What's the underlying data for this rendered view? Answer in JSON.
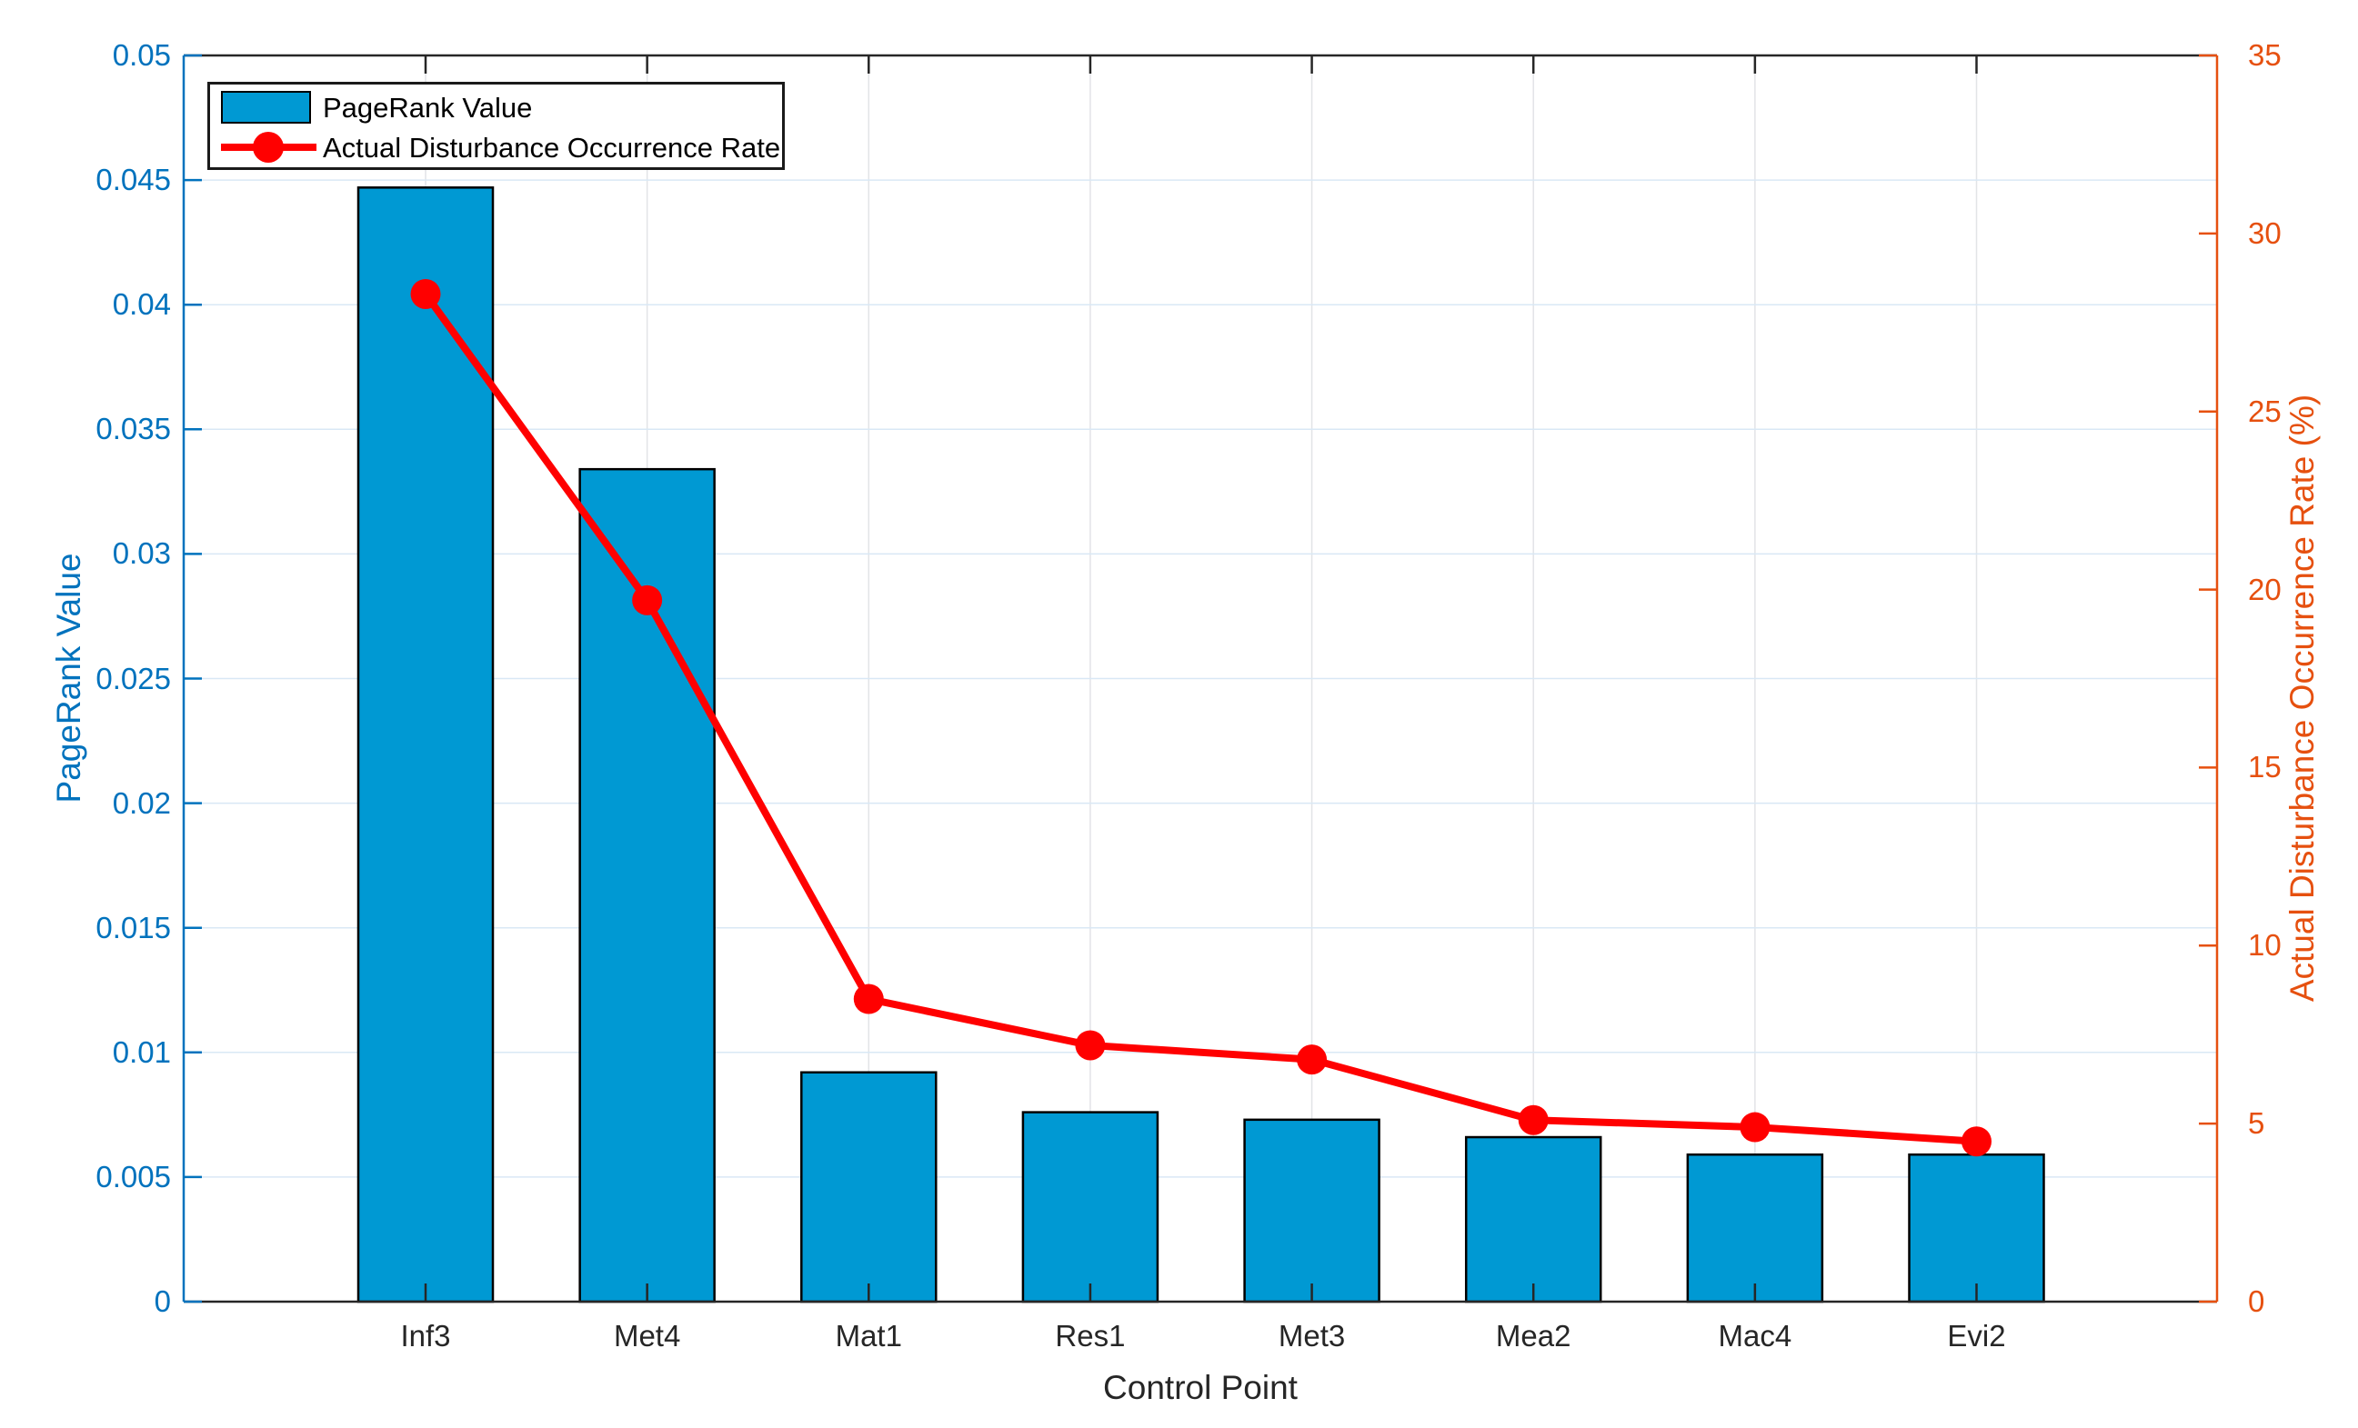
{
  "chart_data": {
    "type": "bar",
    "subtype": "dual-axis bar + line",
    "categories": [
      "Inf3",
      "Met4",
      "Mat1",
      "Res1",
      "Met3",
      "Mea2",
      "Mac4",
      "Evi2"
    ],
    "series": [
      {
        "name": "PageRank Value",
        "type": "bar",
        "axis": "left",
        "color": "#0099D3",
        "edge_color": "#000000",
        "values": [
          0.0447,
          0.0334,
          0.0092,
          0.0076,
          0.0073,
          0.0066,
          0.0059,
          0.0059
        ]
      },
      {
        "name": "Actual Disturbance Occurrence Rate",
        "type": "line",
        "axis": "right",
        "color": "#FF0000",
        "marker": "filled-circle",
        "values": [
          28.3,
          19.7,
          8.5,
          7.2,
          6.8,
          5.1,
          4.9,
          4.5
        ]
      }
    ],
    "xlabel": "Control Point",
    "left_axis": {
      "label": "PageRank Value",
      "color": "#0072BD",
      "min": 0,
      "max": 0.05,
      "tick_values": [
        0,
        0.005,
        0.01,
        0.015,
        0.02,
        0.025,
        0.03,
        0.035,
        0.04,
        0.045,
        0.05
      ],
      "tick_labels": [
        "0",
        "0.005",
        "0.01",
        "0.015",
        "0.02",
        "0.025",
        "0.03",
        "0.035",
        "0.04",
        "0.045",
        "0.05"
      ]
    },
    "right_axis": {
      "label": "Actual Disturbance Occurrence Rate (%)",
      "color": "#E6500F",
      "min": 0,
      "max": 35,
      "tick_values": [
        0,
        5,
        10,
        15,
        20,
        25,
        30,
        35
      ],
      "tick_labels": [
        "0",
        "5",
        "10",
        "15",
        "20",
        "25",
        "30",
        "35"
      ]
    },
    "grid": {
      "horizontal": true,
      "vertical": true,
      "h_color": "#D9E8F5",
      "v_color": "#E2E4E7"
    },
    "legend": {
      "position": "top-left-inside",
      "items": [
        "PageRank Value",
        "Actual Disturbance Occurrence Rate"
      ]
    },
    "frame_color": "#262626"
  }
}
